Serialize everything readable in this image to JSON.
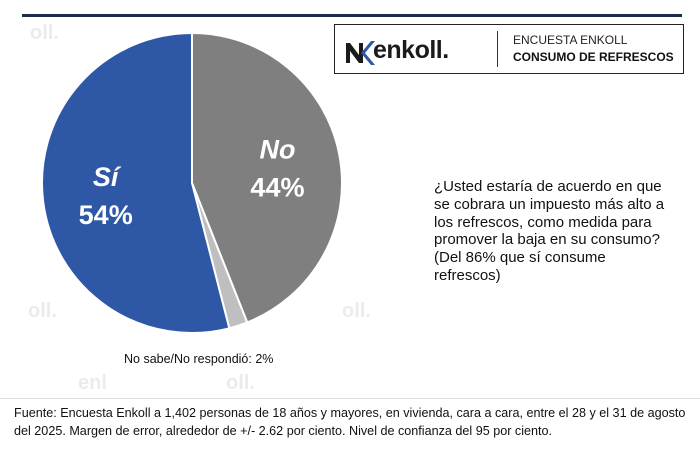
{
  "brand": {
    "logo_text": "enkoll.",
    "line1": "ENCUESTA ENKOLL",
    "line2": "CONSUMO DE REFRESCOS"
  },
  "watermarks": [
    "oll.",
    "oll.",
    "oll.",
    "enl",
    "oll."
  ],
  "chart_data": {
    "type": "pie",
    "title": "",
    "slices": [
      {
        "label": "Sí",
        "value": 54,
        "value_label": "54%",
        "color": "#2e58a6"
      },
      {
        "label": "No",
        "value": 44,
        "value_label": "44%",
        "color": "#7f7f7f"
      },
      {
        "label": "No sabe/No respondió",
        "value": 2,
        "value_label": "2%",
        "color": "#bfbfbf"
      }
    ],
    "external_label": "No sabe/No respondió: 2%"
  },
  "question": "¿Usted estaría de acuerdo en que se cobrara un impuesto más alto a los refrescos, como medida para promover la baja en su consumo? (Del 86% que sí consume refrescos)",
  "source": "Fuente: Encuesta Enkoll a 1,402 personas de 18 años y mayores, en vivienda, cara a cara, entre el 28 y el 31 de agosto del 2025. Margen de error, alrededor de +/- 2.62 por ciento. Nivel de confianza del 95 por ciento."
}
